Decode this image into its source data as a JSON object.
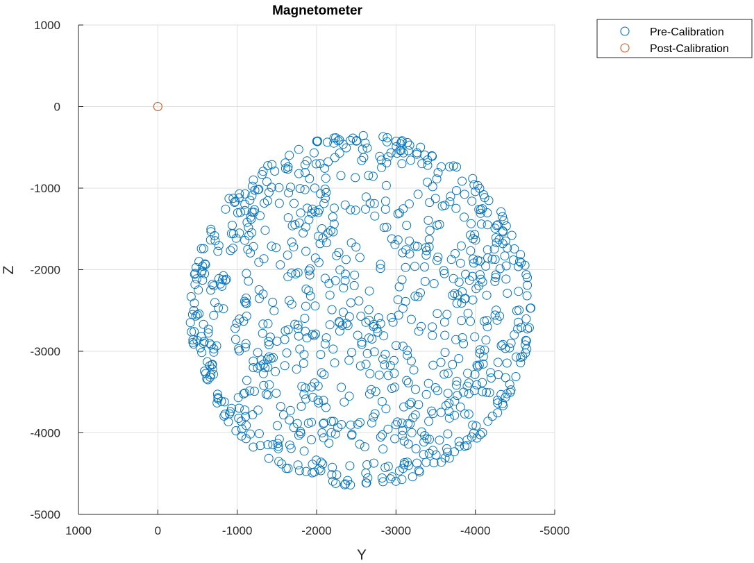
{
  "chart_data": {
    "type": "scatter",
    "title": "Magnetometer",
    "xlabel": "Y",
    "ylabel": "Z",
    "xlim": [
      1000,
      -5000
    ],
    "ylim": [
      -5000,
      1000
    ],
    "x_reversed": true,
    "xticks": [
      1000,
      0,
      -1000,
      -2000,
      -3000,
      -4000,
      -5000
    ],
    "yticks": [
      1000,
      0,
      -1000,
      -2000,
      -3000,
      -4000,
      -5000
    ],
    "xtick_labels": [
      "1000",
      "0",
      "-1000",
      "-2000",
      "-3000",
      "-4000",
      "-5000"
    ],
    "ytick_labels": [
      "1000",
      "0",
      "-1000",
      "-2000",
      "-3000",
      "-4000",
      "-5000"
    ],
    "grid": true,
    "legend_position": "top-right outside",
    "series": [
      {
        "name": "Pre-Calibration",
        "color": "#0072BD",
        "marker": "circle-open",
        "center": [
          -2550,
          -2500
        ],
        "radius": 2150,
        "count": 900,
        "x_extent": [
          -150,
          -4900
        ],
        "y_extent": [
          -350,
          -4650
        ]
      },
      {
        "name": "Post-Calibration",
        "color": "#D95319",
        "marker": "circle-open",
        "x": [
          0
        ],
        "y": [
          0
        ]
      }
    ]
  }
}
